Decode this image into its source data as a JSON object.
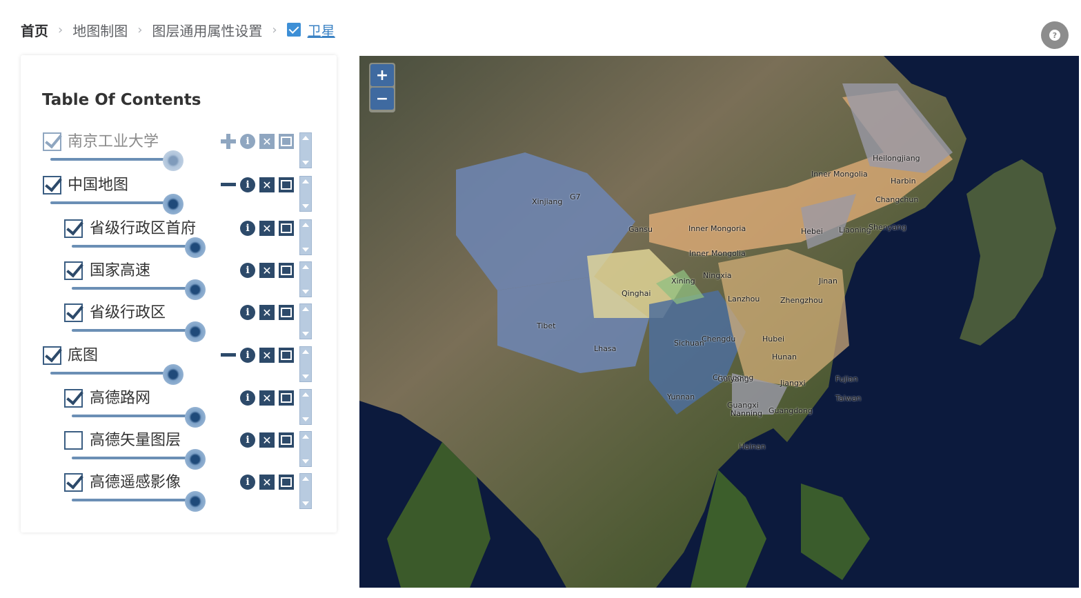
{
  "breadcrumb": {
    "items": [
      "首页",
      "地图制图",
      "图层通用属性设置"
    ],
    "active": "卫星"
  },
  "help": {
    "icon": "?"
  },
  "toc": {
    "title": "Table Of Contents",
    "layers": [
      {
        "label": "南京工业大学",
        "checked": true,
        "muted": true,
        "opacity": 1.0,
        "expand": "plus"
      },
      {
        "label": "中国地图",
        "checked": true,
        "opacity": 1.0,
        "expand": "minus"
      },
      {
        "label": "省级行政区首府",
        "checked": true,
        "opacity": 1.0
      },
      {
        "label": "国家高速",
        "checked": true,
        "opacity": 1.0
      },
      {
        "label": "省级行政区",
        "checked": true,
        "opacity": 1.0
      },
      {
        "label": "底图",
        "checked": true,
        "opacity": 1.0,
        "expand": "minus"
      },
      {
        "label": "高德路网",
        "checked": true,
        "opacity": 1.0
      },
      {
        "label": "高德矢量图层",
        "checked": false,
        "opacity": 1.0
      },
      {
        "label": "高德遥感影像",
        "checked": true,
        "opacity": 1.0
      }
    ]
  },
  "map": {
    "zoom_in": "+",
    "zoom_out": "−",
    "labels": [
      "Heilongjiang",
      "Harbin",
      "Inner Mongolia",
      "Changchun",
      "Xinjiang",
      "G7",
      "Inner Mongoria",
      "Liaoning",
      "Hebei",
      "Inner Mongolia",
      "Qinghai",
      "Ningxia",
      "Gansu",
      "Tibet",
      "Lhasa",
      "Sichuan",
      "Chengdu",
      "Chongqing",
      "Guiyang",
      "Yunnan",
      "Guangxi",
      "Nanning",
      "Hainan",
      "Zhengzhou",
      "Jinan",
      "Hubei",
      "Hunan",
      "Jiangxi",
      "Fujian",
      "Guangdong",
      "Xining",
      "Lanzhou",
      "Taiwan",
      "Shenyang"
    ]
  }
}
